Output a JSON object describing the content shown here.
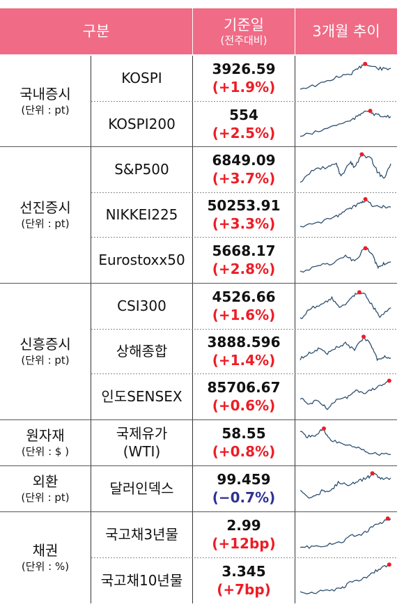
{
  "header": {
    "category_label": "구분",
    "base_date_label": "기준일",
    "base_date_sub": "(전주대비)",
    "trend_label": "3개월 추이"
  },
  "groups": [
    {
      "name": "국내증시",
      "unit": "(단위 : pt)"
    },
    {
      "name": "선진증시",
      "unit": "(단위 : pt)"
    },
    {
      "name": "신흥증시",
      "unit": "(단위 : pt)"
    },
    {
      "name": "원자재",
      "unit": "(단위 : $ )"
    },
    {
      "name": "외환",
      "unit": "(단위 : pt)"
    },
    {
      "name": "채권",
      "unit": "(단위 : %)"
    }
  ],
  "rows": [
    {
      "name": "KOSPI",
      "value": "3926.59",
      "change": "(+1.9%)",
      "direction": "up"
    },
    {
      "name": "KOSPI200",
      "value": "554",
      "change": "(+2.5%)",
      "direction": "up"
    },
    {
      "name": "S&P500",
      "value": "6849.09",
      "change": "(+3.7%)",
      "direction": "up"
    },
    {
      "name": "NIKKEI225",
      "value": "50253.91",
      "change": "(+3.3%)",
      "direction": "up"
    },
    {
      "name": "Eurostoxx50",
      "value": "5668.17",
      "change": "(+2.8%)",
      "direction": "up"
    },
    {
      "name": "CSI300",
      "value": "4526.66",
      "change": "(+1.6%)",
      "direction": "up"
    },
    {
      "name": "상해종합",
      "value": "3888.596",
      "change": "(+1.4%)",
      "direction": "up"
    },
    {
      "name": "인도SENSEX",
      "value": "85706.67",
      "change": "(+0.6%)",
      "direction": "up"
    },
    {
      "name": "국제유가",
      "name2": "(WTI)",
      "value": "58.55",
      "change": "(+0.8%)",
      "direction": "up"
    },
    {
      "name": "달러인덱스",
      "value": "99.459",
      "change": "(−0.7%)",
      "direction": "down"
    },
    {
      "name": "국고채3년물",
      "value": "2.99",
      "change": "(+12bp)",
      "direction": "up"
    },
    {
      "name": "국고채10년물",
      "value": "3.345",
      "change": "(+7bp)",
      "direction": "up"
    }
  ],
  "colors": {
    "header_bg": "#f06b86",
    "up": "#ee1c25",
    "down": "#2e3192",
    "sparkline": "#2f4f6f",
    "peak_marker": "#ee1c25"
  }
}
